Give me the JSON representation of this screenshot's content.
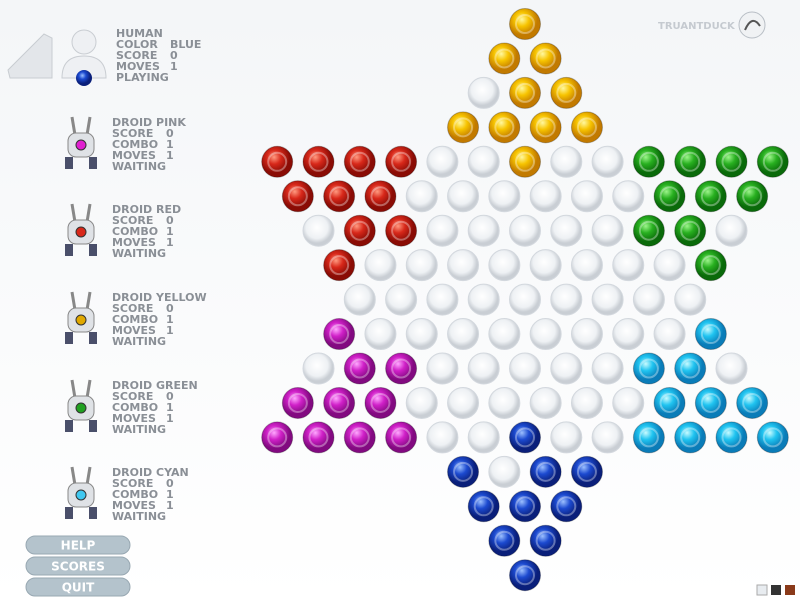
{
  "logo": "TRUANTDUCK",
  "players": [
    {
      "name": "HUMAN",
      "stats": [
        {
          "label": "COLOR",
          "value": "BLUE"
        },
        {
          "label": "SCORE",
          "value": 0
        },
        {
          "label": "MOVES",
          "value": 1
        }
      ],
      "status": "PLAYING"
    },
    {
      "name": "DROID PINK",
      "stats": [
        {
          "label": "SCORE",
          "value": 0
        },
        {
          "label": "COMBO",
          "value": 1
        },
        {
          "label": "MOVES",
          "value": 1
        }
      ],
      "status": "WAITING"
    },
    {
      "name": "DROID RED",
      "stats": [
        {
          "label": "SCORE",
          "value": 0
        },
        {
          "label": "COMBO",
          "value": 1
        },
        {
          "label": "MOVES",
          "value": 1
        }
      ],
      "status": "WAITING"
    },
    {
      "name": "DROID YELLOW",
      "stats": [
        {
          "label": "SCORE",
          "value": 0
        },
        {
          "label": "COMBO",
          "value": 1
        },
        {
          "label": "MOVES",
          "value": 1
        }
      ],
      "status": "WAITING"
    },
    {
      "name": "DROID GREEN",
      "stats": [
        {
          "label": "SCORE",
          "value": 0
        },
        {
          "label": "COMBO",
          "value": 1
        },
        {
          "label": "MOVES",
          "value": 1
        }
      ],
      "status": "WAITING"
    },
    {
      "name": "DROID CYAN",
      "stats": [
        {
          "label": "SCORE",
          "value": 0
        },
        {
          "label": "COMBO",
          "value": 1
        },
        {
          "label": "MOVES",
          "value": 1
        }
      ],
      "status": "WAITING"
    }
  ],
  "buttons": [
    "HELP",
    "SCORES",
    "QUIT"
  ]
}
